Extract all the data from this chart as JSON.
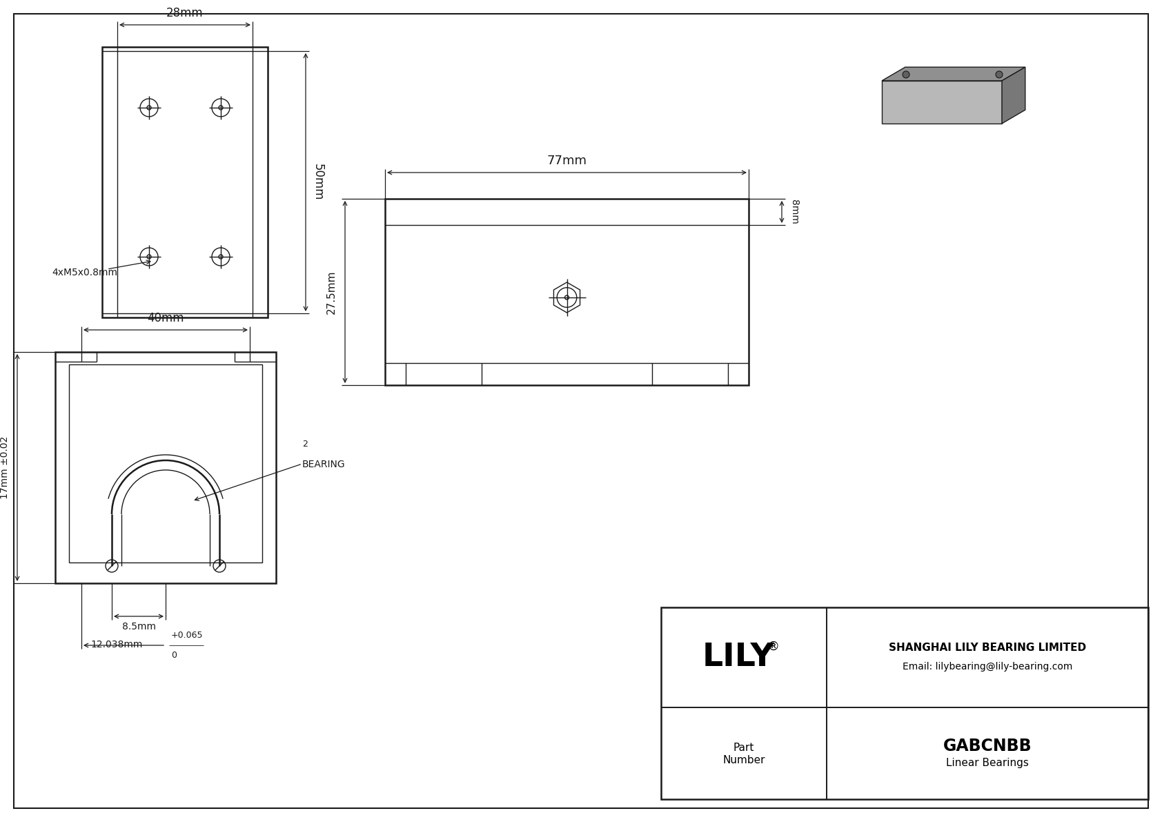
{
  "bg_color": "#ffffff",
  "line_color": "#1a1a1a",
  "dim_28mm": "28mm",
  "dim_50mm": "50mm",
  "dim_40mm": "40mm",
  "dim_17mm": "17mm ±0.02",
  "dim_8_5mm": "8.5mm",
  "dim_12mm": "12.038mm",
  "dim_4xM5": "4xM5x0.8mm",
  "dim_bearing": "BEARING",
  "dim_bearing_sup": "2",
  "dim_77mm": "77mm",
  "dim_27_5mm": "27.5mm",
  "dim_8mm": "8mm",
  "tol_plus": "+0.065",
  "tol_zero": "0",
  "logo_text": "LILY",
  "logo_reg": "®",
  "company": "SHANGHAI LILY BEARING LIMITED",
  "email": "Email: lilybearing@lily-bearing.com",
  "part_label_1": "Part",
  "part_label_2": "Number",
  "part_name": "GABCNBB",
  "part_type": "Linear Bearings",
  "lw_main": 1.8,
  "lw_thin": 1.0,
  "lw_dim": 0.9
}
